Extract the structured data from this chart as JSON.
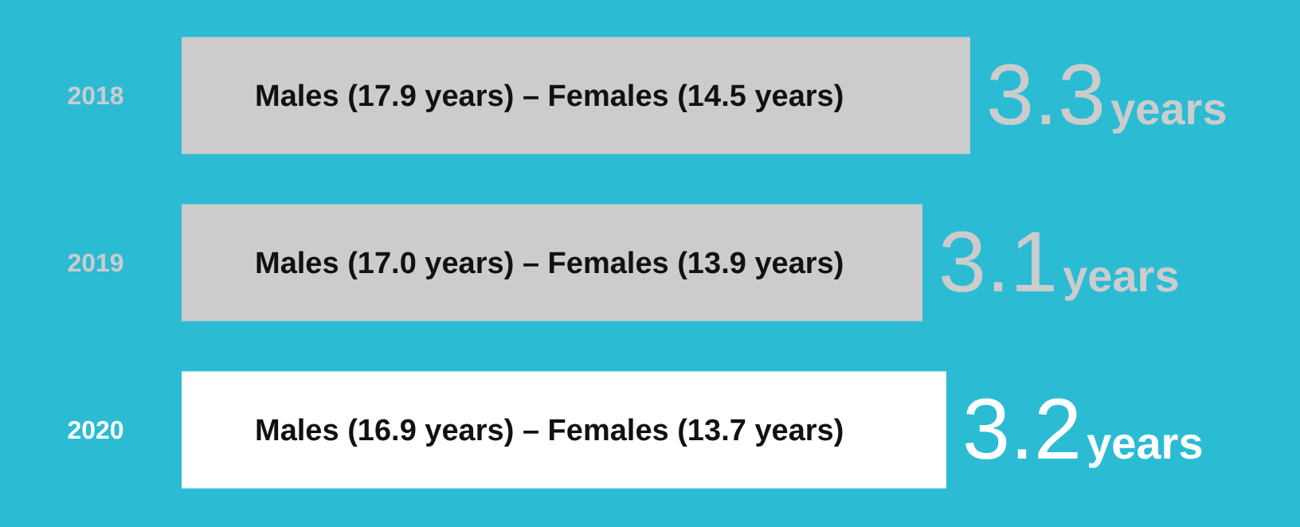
{
  "chart_data": {
    "type": "bar",
    "orientation": "horizontal",
    "categories": [
      "2018",
      "2019",
      "2020"
    ],
    "values": [
      3.3,
      3.1,
      3.2
    ],
    "colors": [
      "#cccccc",
      "#cccccc",
      "#ffffff"
    ],
    "value_labels": [
      "3.3years",
      "3.1years",
      "3.2years"
    ],
    "annotations": [
      "Males (17.9 years) – Females (14.5 years)",
      "Males (17.0 years) – Females (13.9 years)",
      "Males (16.9 years) – Females (13.7 years)"
    ]
  }
}
